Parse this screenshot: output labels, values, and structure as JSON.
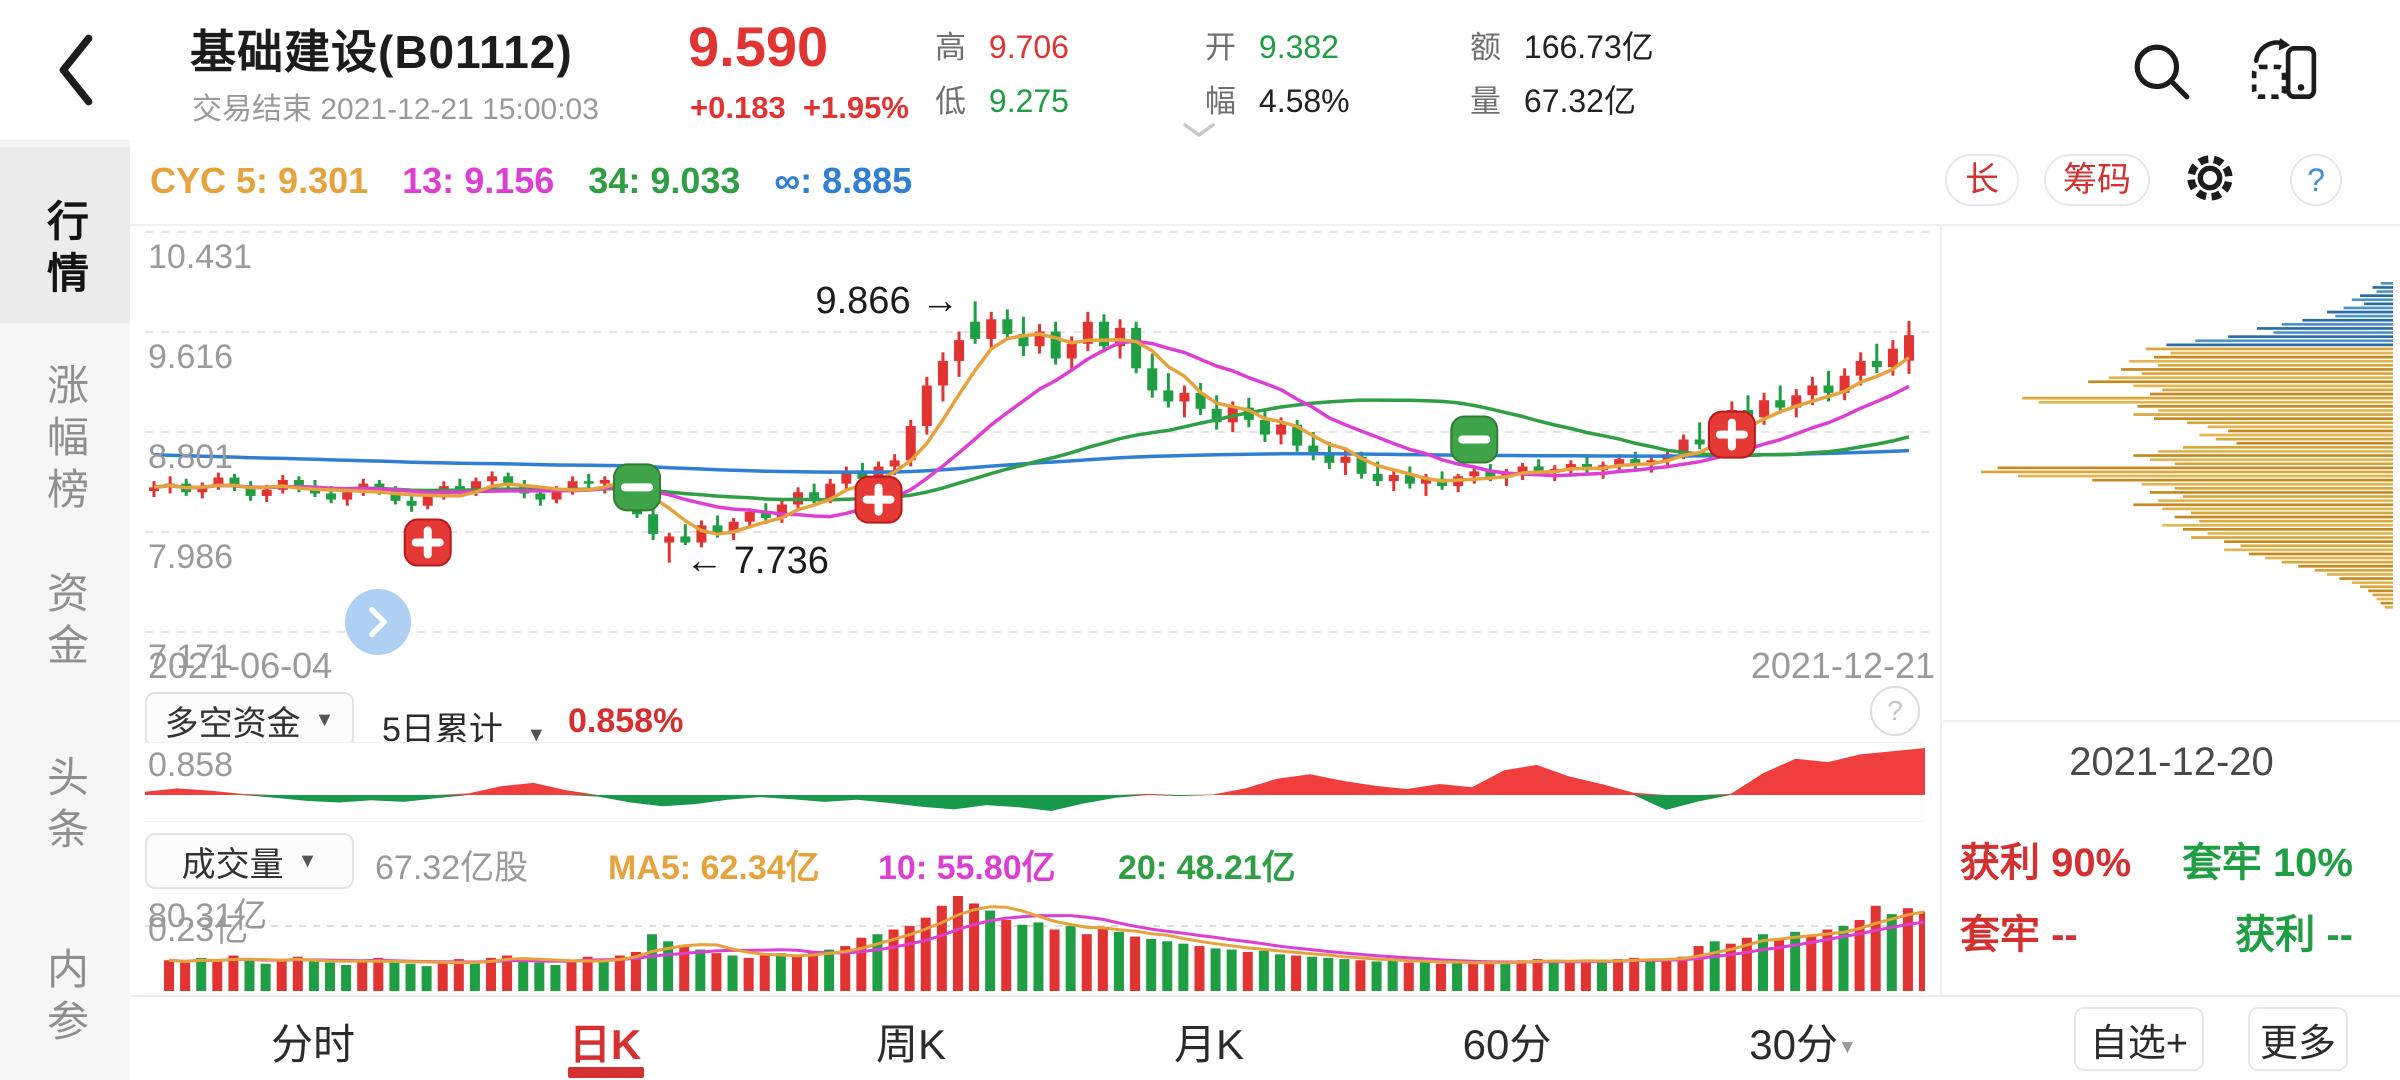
{
  "colors": {
    "up": "#e23333",
    "down": "#1f9e44",
    "accent_red": "#d43030",
    "text_dark": "#222222",
    "text_gray": "#999999",
    "ma5": "#e6a23c",
    "ma13": "#dd3fd3",
    "ma34": "#2f9e44",
    "ma_inf": "#2f7fd4",
    "ind_pos": "#f03e3e",
    "ind_neg": "#18984a",
    "chip_blue": "#4f94c9",
    "chip_blue2": "#2a6da5",
    "chip_yellow": "#d9a63a",
    "chip_yellow2": "#c9881f",
    "chip_yellow3": "#e2b54e",
    "badge_red": "#e53935",
    "badge_red_border": "#b71c1c",
    "badge_green": "#3fa34a",
    "badge_green_border": "#2e7d32",
    "nav_blue": "#a8cdf2",
    "grid_line": "#e4e4e4"
  },
  "icons": {
    "caret_down": "▼",
    "question": "?"
  },
  "header": {
    "title": "基础建设(B01112)",
    "subtitle": "交易结束 2021-12-21 15:00:03",
    "price": "9.590",
    "change": "+0.183",
    "change_pct": "+1.95%",
    "stats": [
      {
        "label": "高",
        "value": "9.706",
        "color": "#e23333"
      },
      {
        "label": "低",
        "value": "9.275",
        "color": "#1f9e44"
      },
      {
        "label": "开",
        "value": "9.382",
        "color": "#1f9e44"
      },
      {
        "label": "幅",
        "value": "4.58%",
        "color": "#222222"
      },
      {
        "label": "额",
        "value": "166.73亿",
        "color": "#222222"
      },
      {
        "label": "量",
        "value": "67.32亿",
        "color": "#222222"
      }
    ]
  },
  "sidebar": {
    "active": "行情",
    "items": [
      {
        "label": "行情"
      },
      {
        "label": "涨幅榜"
      },
      {
        "label": "资金"
      },
      {
        "label": "头条"
      },
      {
        "label": "内参"
      }
    ]
  },
  "toolbar": {
    "cyc": [
      {
        "label": "CYC 5:",
        "value": "9.301",
        "color": "#e6a23c"
      },
      {
        "label": "13:",
        "value": "9.156",
        "color": "#dd3fd3"
      },
      {
        "label": "34:",
        "value": "9.033",
        "color": "#2f9e44"
      },
      {
        "label": "∞:",
        "value": "8.885",
        "color": "#2f7fd4"
      }
    ],
    "long_button": "长",
    "chip_button": "筹码"
  },
  "main_chart": {
    "y_labels": [
      "10.431",
      "9.616",
      "8.801",
      "7.986",
      "7.171"
    ],
    "date_left": "2021-06-04",
    "date_right": "2021-12-21",
    "annotations": {
      "high_label": "9.866 →",
      "high_day": 51,
      "high_price": 9.87,
      "low_label": "← 7.736",
      "low_day": 32,
      "low_price": 7.75
    },
    "badges": [
      {
        "day": 17,
        "price": 7.9,
        "type": "plus"
      },
      {
        "day": 30,
        "price": 8.35,
        "type": "minus"
      },
      {
        "day": 45,
        "price": 8.25,
        "type": "plus"
      },
      {
        "day": 82,
        "price": 8.74,
        "type": "minus"
      },
      {
        "day": 98,
        "price": 8.78,
        "type": "plus"
      }
    ]
  },
  "indicator": {
    "name": "多空资金",
    "period": "5日累计",
    "value_label": "0.858%",
    "value_color": "#d43030",
    "axis_label": "0.858"
  },
  "volume": {
    "name": "成交量",
    "current": "67.32亿股",
    "ma5": "MA5: 62.34亿",
    "ma10": "10: 55.80亿",
    "ma20": "20: 48.21亿",
    "max_label": "80.31亿",
    "min_label": "0.23亿"
  },
  "chip_panel": {
    "date": "2021-12-20",
    "profit_label": "获利 90%",
    "trapped_label": "套牢 10%",
    "trapped2_label": "套牢 --",
    "profit2_label": "获利 --",
    "profit_color": "#d43030",
    "trapped_color": "#1f9e44"
  },
  "tabs": {
    "items": [
      "分时",
      "日K",
      "周K",
      "月K",
      "60分",
      "30分"
    ],
    "active": "日K",
    "watchlist_button": "自选+",
    "more_button": "更多"
  },
  "chart_data": {
    "main": {
      "type": "candlestick",
      "start_date": "2021-06-04",
      "end_date": "2021-12-21",
      "ylim": [
        7.171,
        10.431
      ],
      "grid_values": [
        10.431,
        9.616,
        8.801,
        7.986,
        7.171
      ],
      "high_annotation": 9.866,
      "low_annotation": 7.736,
      "candles": [
        [
          8.32,
          8.4,
          8.27,
          8.35
        ],
        [
          8.35,
          8.44,
          8.3,
          8.38
        ],
        [
          8.38,
          8.42,
          8.28,
          8.31
        ],
        [
          8.31,
          8.39,
          8.26,
          8.36
        ],
        [
          8.36,
          8.47,
          8.33,
          8.43
        ],
        [
          8.43,
          8.46,
          8.32,
          8.35
        ],
        [
          8.35,
          8.4,
          8.24,
          8.28
        ],
        [
          8.28,
          8.37,
          8.23,
          8.33
        ],
        [
          8.33,
          8.45,
          8.3,
          8.41
        ],
        [
          8.41,
          8.44,
          8.31,
          8.35
        ],
        [
          8.35,
          8.41,
          8.27,
          8.3
        ],
        [
          8.3,
          8.36,
          8.22,
          8.25
        ],
        [
          8.25,
          8.34,
          8.2,
          8.31
        ],
        [
          8.31,
          8.42,
          8.28,
          8.38
        ],
        [
          8.38,
          8.41,
          8.29,
          8.32
        ],
        [
          8.32,
          8.36,
          8.21,
          8.24
        ],
        [
          8.24,
          8.3,
          8.15,
          8.2
        ],
        [
          8.2,
          8.33,
          8.17,
          8.29
        ],
        [
          8.29,
          8.4,
          8.25,
          8.36
        ],
        [
          8.36,
          8.42,
          8.27,
          8.31
        ],
        [
          8.31,
          8.43,
          8.28,
          8.4
        ],
        [
          8.4,
          8.48,
          8.34,
          8.44
        ],
        [
          8.44,
          8.47,
          8.33,
          8.37
        ],
        [
          8.37,
          8.41,
          8.26,
          8.3
        ],
        [
          8.3,
          8.35,
          8.2,
          8.25
        ],
        [
          8.25,
          8.36,
          8.22,
          8.32
        ],
        [
          8.32,
          8.44,
          8.29,
          8.4
        ],
        [
          8.4,
          8.46,
          8.32,
          8.38
        ],
        [
          8.38,
          8.44,
          8.3,
          8.41
        ],
        [
          8.41,
          8.47,
          8.35,
          8.44
        ],
        [
          8.5,
          8.53,
          8.1,
          8.13
        ],
        [
          8.13,
          8.18,
          7.92,
          7.97
        ],
        [
          7.9,
          7.98,
          7.736,
          7.95
        ],
        [
          7.95,
          8.05,
          7.88,
          7.9
        ],
        [
          7.9,
          8.08,
          7.86,
          8.04
        ],
        [
          8.04,
          8.12,
          7.94,
          7.98
        ],
        [
          7.98,
          8.1,
          7.92,
          8.07
        ],
        [
          8.07,
          8.18,
          8.02,
          8.15
        ],
        [
          8.15,
          8.22,
          8.05,
          8.1
        ],
        [
          8.1,
          8.25,
          8.06,
          8.21
        ],
        [
          8.21,
          8.35,
          8.16,
          8.31
        ],
        [
          8.31,
          8.38,
          8.22,
          8.26
        ],
        [
          8.26,
          8.42,
          8.22,
          8.38
        ],
        [
          8.38,
          8.52,
          8.33,
          8.48
        ],
        [
          8.48,
          8.55,
          8.38,
          8.42
        ],
        [
          8.42,
          8.56,
          8.36,
          8.52
        ],
        [
          8.52,
          8.62,
          8.45,
          8.57
        ],
        [
          8.57,
          8.9,
          8.52,
          8.85
        ],
        [
          8.85,
          9.25,
          8.78,
          9.18
        ],
        [
          9.18,
          9.45,
          9.05,
          9.38
        ],
        [
          9.38,
          9.62,
          9.25,
          9.55
        ],
        [
          9.7,
          9.866,
          9.52,
          9.56
        ],
        [
          9.56,
          9.78,
          9.48,
          9.72
        ],
        [
          9.72,
          9.8,
          9.55,
          9.6
        ],
        [
          9.6,
          9.74,
          9.42,
          9.5
        ],
        [
          9.5,
          9.68,
          9.44,
          9.62
        ],
        [
          9.62,
          9.7,
          9.35,
          9.4
        ],
        [
          9.4,
          9.58,
          9.3,
          9.52
        ],
        [
          9.52,
          9.78,
          9.46,
          9.7
        ],
        [
          9.7,
          9.76,
          9.45,
          9.5
        ],
        [
          9.5,
          9.72,
          9.4,
          9.65
        ],
        [
          9.65,
          9.7,
          9.28,
          9.32
        ],
        [
          9.32,
          9.44,
          9.08,
          9.14
        ],
        [
          9.14,
          9.28,
          9.0,
          9.05
        ],
        [
          9.05,
          9.18,
          8.92,
          9.12
        ],
        [
          9.12,
          9.2,
          8.94,
          8.99
        ],
        [
          8.99,
          9.1,
          8.82,
          8.88
        ],
        [
          8.88,
          9.05,
          8.8,
          9.0
        ],
        [
          9.0,
          9.08,
          8.84,
          8.9
        ],
        [
          8.9,
          8.98,
          8.72,
          8.78
        ],
        [
          8.78,
          8.92,
          8.7,
          8.86
        ],
        [
          8.86,
          8.9,
          8.64,
          8.69
        ],
        [
          8.69,
          8.8,
          8.57,
          8.62
        ],
        [
          8.62,
          8.72,
          8.5,
          8.55
        ],
        [
          8.55,
          8.66,
          8.45,
          8.6
        ],
        [
          8.6,
          8.64,
          8.42,
          8.46
        ],
        [
          8.46,
          8.56,
          8.36,
          8.4
        ],
        [
          8.4,
          8.5,
          8.32,
          8.45
        ],
        [
          8.45,
          8.52,
          8.34,
          8.38
        ],
        [
          8.38,
          8.46,
          8.28,
          8.42
        ],
        [
          8.42,
          8.48,
          8.33,
          8.36
        ],
        [
          8.36,
          8.46,
          8.31,
          8.44
        ],
        [
          8.44,
          8.52,
          8.38,
          8.48
        ],
        [
          8.48,
          8.54,
          8.4,
          8.43
        ],
        [
          8.43,
          8.5,
          8.36,
          8.47
        ],
        [
          8.47,
          8.55,
          8.41,
          8.52
        ],
        [
          8.52,
          8.58,
          8.44,
          8.47
        ],
        [
          8.47,
          8.53,
          8.4,
          8.5
        ],
        [
          8.5,
          8.57,
          8.44,
          8.54
        ],
        [
          8.54,
          8.6,
          8.46,
          8.49
        ],
        [
          8.49,
          8.56,
          8.42,
          8.53
        ],
        [
          8.53,
          8.62,
          8.47,
          8.58
        ],
        [
          8.58,
          8.64,
          8.5,
          8.54
        ],
        [
          8.54,
          8.61,
          8.47,
          8.57
        ],
        [
          8.57,
          8.66,
          8.51,
          8.62
        ],
        [
          8.62,
          8.78,
          8.58,
          8.74
        ],
        [
          8.74,
          8.88,
          8.66,
          8.7
        ],
        [
          8.7,
          8.92,
          8.65,
          8.87
        ],
        [
          8.87,
          9.05,
          8.8,
          8.98
        ],
        [
          8.98,
          9.1,
          8.85,
          8.92
        ],
        [
          8.92,
          9.12,
          8.86,
          9.06
        ],
        [
          9.06,
          9.18,
          8.95,
          9.0
        ],
        [
          9.0,
          9.15,
          8.92,
          9.1
        ],
        [
          9.1,
          9.25,
          9.02,
          9.18
        ],
        [
          9.18,
          9.3,
          9.05,
          9.12
        ],
        [
          9.12,
          9.32,
          9.06,
          9.26
        ],
        [
          9.26,
          9.45,
          9.18,
          9.38
        ],
        [
          9.38,
          9.52,
          9.28,
          9.33
        ],
        [
          9.33,
          9.55,
          9.26,
          9.48
        ],
        [
          9.382,
          9.706,
          9.275,
          9.59
        ]
      ]
    },
    "bull_bear": {
      "type": "area",
      "max": 0.858,
      "values": [
        0.06,
        0.12,
        0.08,
        0.02,
        -0.05,
        -0.11,
        -0.14,
        -0.1,
        -0.13,
        -0.06,
        0.03,
        0.16,
        0.22,
        0.09,
        -0.03,
        -0.14,
        -0.21,
        -0.17,
        -0.09,
        -0.04,
        -0.08,
        -0.13,
        -0.09,
        -0.15,
        -0.22,
        -0.27,
        -0.19,
        -0.23,
        -0.3,
        -0.16,
        -0.05,
        0.02,
        -0.02,
        0.01,
        0.12,
        0.3,
        0.38,
        0.26,
        0.17,
        0.11,
        0.2,
        0.14,
        0.45,
        0.55,
        0.34,
        0.2,
        0.04,
        -0.28,
        -0.12,
        0.02,
        0.4,
        0.66,
        0.6,
        0.74,
        0.8,
        0.858
      ]
    },
    "volume": {
      "type": "bar",
      "max": 80.31,
      "grid_value": 55,
      "values": [
        26,
        24,
        28,
        25,
        30,
        27,
        23,
        25,
        29,
        26,
        24,
        22,
        26,
        28,
        25,
        23,
        21,
        24,
        27,
        25,
        28,
        30,
        27,
        24,
        22,
        25,
        29,
        27,
        30,
        33,
        48,
        42,
        38,
        35,
        32,
        30,
        28,
        30,
        32,
        29,
        33,
        35,
        38,
        45,
        48,
        52,
        55,
        62,
        72,
        80.31,
        74,
        68,
        60,
        56,
        58,
        52,
        55,
        48,
        54,
        50,
        46,
        44,
        42,
        40,
        38,
        36,
        35,
        33,
        34,
        31,
        30,
        29,
        28,
        27,
        26,
        25,
        26,
        24,
        25,
        23,
        24,
        23,
        25,
        24,
        26,
        27,
        25,
        24,
        26,
        25,
        27,
        28,
        26,
        27,
        29,
        38,
        42,
        40,
        45,
        48,
        44,
        50,
        47,
        52,
        55,
        60,
        72,
        65,
        70,
        67.32
      ]
    },
    "chip_distribution": {
      "type": "hbar",
      "blue_count": 16,
      "values": [
        0.03,
        0.05,
        0.04,
        0.08,
        0.1,
        0.07,
        0.12,
        0.16,
        0.14,
        0.22,
        0.27,
        0.33,
        0.29,
        0.4,
        0.48,
        0.55,
        0.6,
        0.54,
        0.58,
        0.64,
        0.57,
        0.66,
        0.61,
        0.69,
        0.74,
        0.63,
        0.56,
        0.59,
        0.9,
        0.86,
        0.62,
        0.57,
        0.63,
        0.58,
        0.5,
        0.45,
        0.4,
        0.47,
        0.43,
        0.38,
        0.51,
        0.57,
        0.63,
        0.59,
        0.53,
        0.96,
        1.0,
        0.91,
        0.73,
        0.61,
        0.53,
        0.59,
        0.51,
        0.57,
        0.63,
        0.56,
        0.49,
        0.53,
        0.47,
        0.56,
        0.51,
        0.45,
        0.49,
        0.41,
        0.37,
        0.41,
        0.35,
        0.31,
        0.27,
        0.23,
        0.19,
        0.16,
        0.13,
        0.1,
        0.08,
        0.06,
        0.05,
        0.04,
        0.03,
        0.02
      ]
    }
  }
}
